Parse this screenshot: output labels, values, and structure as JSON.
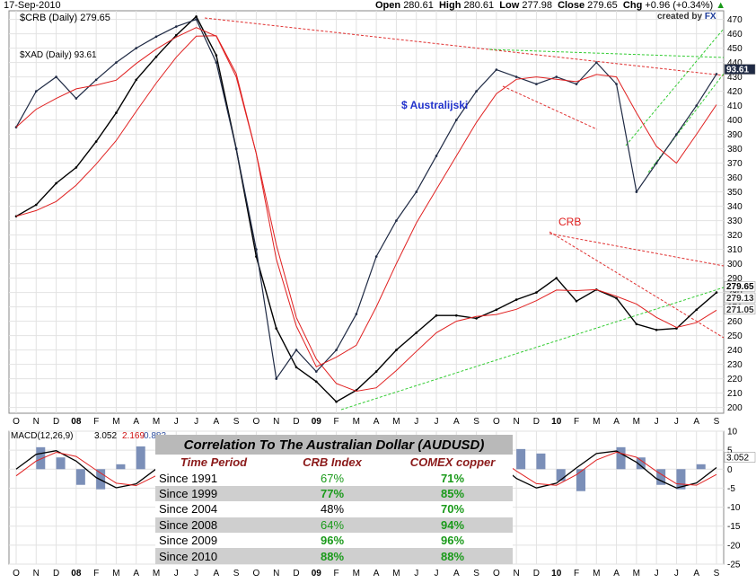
{
  "header": {
    "date": "17-Sep-2010",
    "open_label": "Open",
    "open": "280.61",
    "high_label": "High",
    "high": "280.61",
    "low_label": "Low",
    "low": "277.98",
    "close_label": "Close",
    "close": "279.65",
    "chg_label": "Chg",
    "chg": "+0.96 (+0.34%)",
    "chg_arrow": "▲",
    "created_by": "created by",
    "created_brand": "FX"
  },
  "legend": {
    "crb": "$CRB (Daily) 279.65",
    "xad": "$XAD (Daily) 93.61"
  },
  "annotations": {
    "aud": "$ Australijski",
    "crb": "CRB"
  },
  "price_labels": {
    "xad_last": "93.61",
    "crb_last": "279.65",
    "crb_ma1": "279.13",
    "crb_ma2": "271.05"
  },
  "macd": {
    "label": "MACD(12,26,9)",
    "v1": "3.052",
    "v2": "2.169",
    "v3": "0.883",
    "last_label": "3.052"
  },
  "chart_data": {
    "type": "line",
    "x_ticks": [
      "O",
      "N",
      "D",
      "08",
      "F",
      "M",
      "A",
      "M",
      "J",
      "J",
      "A",
      "S",
      "O",
      "N",
      "D",
      "09",
      "F",
      "M",
      "A",
      "M",
      "J",
      "J",
      "A",
      "S",
      "O",
      "N",
      "D",
      "10",
      "F",
      "M",
      "A",
      "M",
      "J",
      "J",
      "A",
      "S"
    ],
    "y_ticks": [
      200,
      210,
      220,
      230,
      240,
      250,
      260,
      270,
      280,
      290,
      300,
      310,
      320,
      330,
      340,
      350,
      360,
      370,
      380,
      390,
      400,
      410,
      420,
      430,
      440,
      450,
      460,
      470
    ],
    "ylim": [
      196,
      476
    ],
    "macd_ticks": [
      "10",
      "5",
      "0",
      "-5",
      "-10",
      "-15",
      "-20",
      "-25"
    ],
    "macd_ylim": [
      -25,
      10
    ],
    "series": [
      {
        "name": "$CRB (Daily)",
        "color": "#000000",
        "points": [
          [
            0,
            333
          ],
          [
            1,
            341
          ],
          [
            2,
            356
          ],
          [
            3,
            367
          ],
          [
            4,
            385
          ],
          [
            5,
            405
          ],
          [
            6,
            428
          ],
          [
            7,
            444
          ],
          [
            8,
            459
          ],
          [
            9,
            472
          ],
          [
            10,
            445
          ],
          [
            11,
            380
          ],
          [
            12,
            305
          ],
          [
            13,
            255
          ],
          [
            14,
            228
          ],
          [
            15,
            218
          ],
          [
            16,
            204
          ],
          [
            17,
            212
          ],
          [
            18,
            225
          ],
          [
            19,
            240
          ],
          [
            20,
            252
          ],
          [
            21,
            264
          ],
          [
            22,
            264
          ],
          [
            23,
            262
          ],
          [
            24,
            268
          ],
          [
            25,
            275
          ],
          [
            26,
            280
          ],
          [
            27,
            290
          ],
          [
            28,
            274
          ],
          [
            29,
            282
          ],
          [
            30,
            276
          ],
          [
            31,
            258
          ],
          [
            32,
            254
          ],
          [
            33,
            255
          ],
          [
            34,
            268
          ],
          [
            35,
            280
          ]
        ]
      },
      {
        "name": "$XAD (Daily)",
        "color": "#1f2a44",
        "points": [
          [
            0,
            395
          ],
          [
            1,
            420
          ],
          [
            2,
            430
          ],
          [
            3,
            415
          ],
          [
            4,
            428
          ],
          [
            5,
            440
          ],
          [
            6,
            450
          ],
          [
            7,
            458
          ],
          [
            8,
            465
          ],
          [
            9,
            470
          ],
          [
            10,
            440
          ],
          [
            11,
            380
          ],
          [
            12,
            310
          ],
          [
            13,
            220
          ],
          [
            14,
            240
          ],
          [
            15,
            225
          ],
          [
            16,
            240
          ],
          [
            17,
            265
          ],
          [
            18,
            305
          ],
          [
            19,
            330
          ],
          [
            20,
            350
          ],
          [
            21,
            375
          ],
          [
            22,
            400
          ],
          [
            23,
            420
          ],
          [
            24,
            435
          ],
          [
            25,
            430
          ],
          [
            26,
            425
          ],
          [
            27,
            430
          ],
          [
            28,
            425
          ],
          [
            29,
            440
          ],
          [
            30,
            425
          ],
          [
            31,
            350
          ],
          [
            32,
            370
          ],
          [
            33,
            390
          ],
          [
            34,
            410
          ],
          [
            35,
            432
          ]
        ]
      }
    ],
    "correlation_table": {
      "title": "Correlation To The Australian Dollar (AUDUSD)",
      "columns": [
        "Time Period",
        "CRB Index",
        "COMEX copper"
      ],
      "rows": [
        {
          "period": "Since 1991",
          "crb": "67%",
          "copper": "71%"
        },
        {
          "period": "Since 1999",
          "crb": "77%",
          "copper": "85%"
        },
        {
          "period": "Since 2004",
          "crb": "48%",
          "copper": "70%"
        },
        {
          "period": "Since 2008",
          "crb": "64%",
          "copper": "94%"
        },
        {
          "period": "Since 2009",
          "crb": "96%",
          "copper": "96%"
        },
        {
          "period": "Since 2010",
          "crb": "88%",
          "copper": "88%"
        }
      ]
    }
  }
}
